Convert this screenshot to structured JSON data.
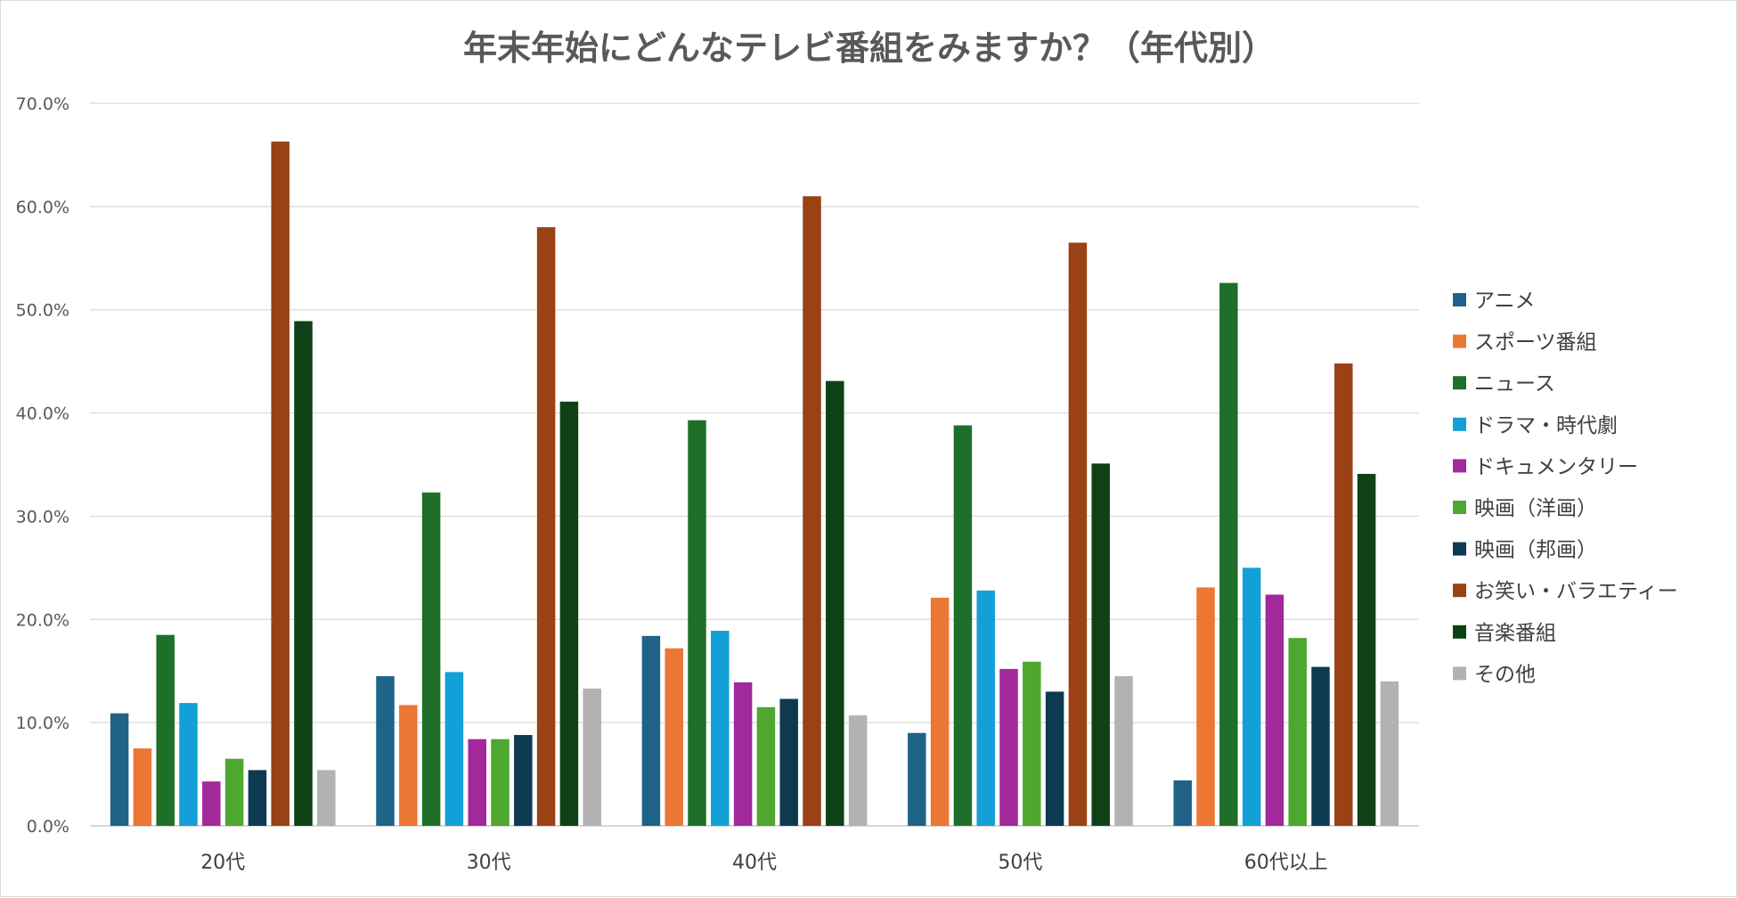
{
  "chart_data": {
    "type": "bar",
    "title": "年末年始にどんなテレビ番組をみますか？（年代別）",
    "xlabel": "",
    "ylabel": "",
    "ylim": [
      0,
      0.7
    ],
    "yticks": [
      "0.0%",
      "10.0%",
      "20.0%",
      "30.0%",
      "40.0%",
      "50.0%",
      "60.0%",
      "70.0%"
    ],
    "grid": true,
    "legend_position": "right",
    "categories": [
      "20代",
      "30代",
      "40代",
      "50代",
      "60代以上"
    ],
    "series": [
      {
        "name": "アニメ",
        "color": "#1f6388",
        "values": [
          0.109,
          0.145,
          0.184,
          0.09,
          0.044
        ]
      },
      {
        "name": "スポーツ番組",
        "color": "#ec7634",
        "values": [
          0.075,
          0.117,
          0.172,
          0.221,
          0.231
        ]
      },
      {
        "name": "ニュース",
        "color": "#1e7029",
        "values": [
          0.185,
          0.323,
          0.393,
          0.388,
          0.526
        ]
      },
      {
        "name": "ドラマ・時代劇",
        "color": "#12a0d7",
        "values": [
          0.119,
          0.149,
          0.189,
          0.228,
          0.25
        ]
      },
      {
        "name": "ドキュメンタリー",
        "color": "#a1299a",
        "values": [
          0.043,
          0.084,
          0.139,
          0.152,
          0.224
        ]
      },
      {
        "name": "映画（洋画）",
        "color": "#4ea72e",
        "values": [
          0.065,
          0.084,
          0.115,
          0.159,
          0.182
        ]
      },
      {
        "name": "映画（邦画）",
        "color": "#0e3a51",
        "values": [
          0.054,
          0.088,
          0.123,
          0.13,
          0.154
        ]
      },
      {
        "name": "お笑い・バラエティー",
        "color": "#9a4115",
        "values": [
          0.663,
          0.58,
          0.61,
          0.565,
          0.448
        ]
      },
      {
        "name": "音楽番組",
        "color": "#0f4116",
        "values": [
          0.489,
          0.411,
          0.431,
          0.351,
          0.341
        ]
      },
      {
        "name": "その他",
        "color": "#b2b2b2",
        "values": [
          0.054,
          0.133,
          0.107,
          0.145,
          0.14
        ]
      }
    ]
  }
}
